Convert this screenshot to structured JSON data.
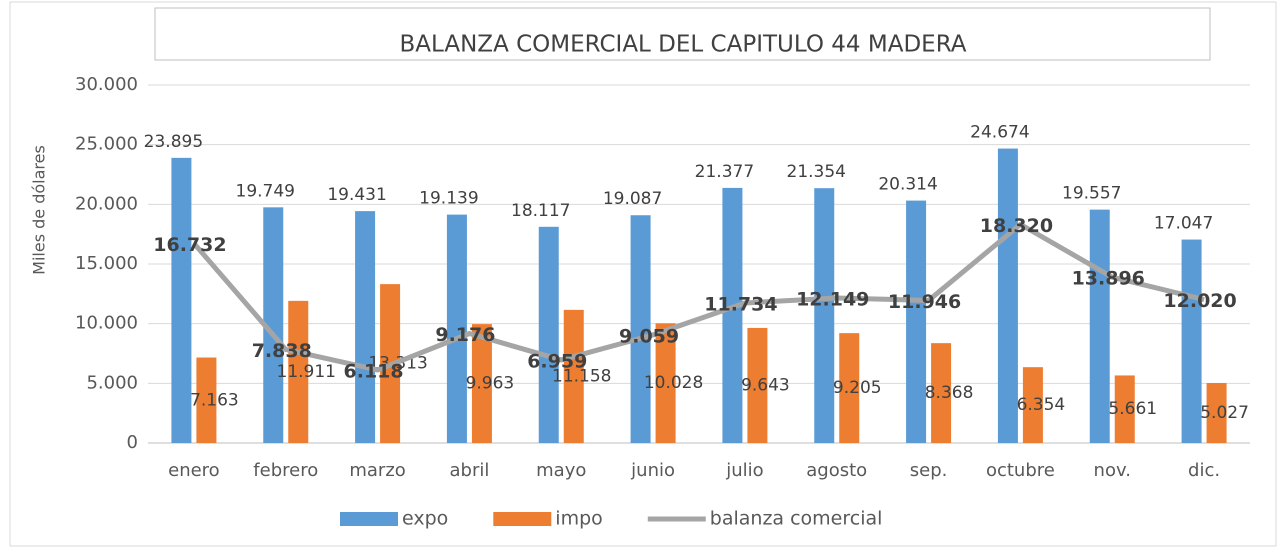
{
  "chart_data": {
    "type": "bar",
    "title": "BALANZA COMERCIAL DEL CAPITULO 44 MADERA",
    "y_label": "Miles de dólares",
    "categories": [
      "enero",
      "febrero",
      "marzo",
      "abril",
      "mayo",
      "junio",
      "julio",
      "agosto",
      "sep.",
      "octubre",
      "nov.",
      "dic."
    ],
    "series": [
      {
        "name": "expo",
        "type": "bar",
        "color": "#5b9bd5",
        "values": [
          23895,
          19749,
          19431,
          19139,
          18117,
          19087,
          21377,
          21354,
          20314,
          24674,
          19557,
          17047
        ],
        "value_labels": [
          "23.895",
          "19.749",
          "19.431",
          "19.139",
          "18.117",
          "19.087",
          "21.377",
          "21.354",
          "20.314",
          "24.674",
          "19.557",
          "17.047"
        ]
      },
      {
        "name": "impo",
        "type": "bar",
        "color": "#ed7d31",
        "values": [
          7163,
          11911,
          13313,
          9963,
          11158,
          10028,
          9643,
          9205,
          8368,
          6354,
          5661,
          5027
        ],
        "value_labels": [
          "7.163",
          "11.911",
          "13.313",
          "9.963",
          "11.158",
          "10.028",
          "9.643",
          "9.205",
          "8.368",
          "6.354",
          "5.661",
          "5.027"
        ]
      },
      {
        "name": "balanza comercial",
        "type": "line",
        "color": "#a5a5a5",
        "values": [
          16732,
          7838,
          6118,
          9176,
          6959,
          9059,
          11734,
          12149,
          11946,
          18320,
          13896,
          12020
        ],
        "value_labels": [
          "16.732",
          "7.838",
          "6.118",
          "9.176",
          "6.959",
          "9.059",
          "11.734",
          "12.149",
          "11.946",
          "18.320",
          "13.896",
          "12.020"
        ]
      }
    ],
    "ylim": [
      0,
      30000
    ],
    "yticks": [
      0,
      {
        "value": 5000,
        "label": "5.000"
      },
      {
        "value": 10000,
        "label": "10.000"
      },
      {
        "value": 15000,
        "label": "15.000"
      },
      {
        "value": 20000,
        "label": "20.000"
      },
      {
        "value": 25000,
        "label": "25.000"
      },
      {
        "value": 30000,
        "label": "30.000"
      }
    ],
    "grid": true,
    "legend": "bottom"
  }
}
